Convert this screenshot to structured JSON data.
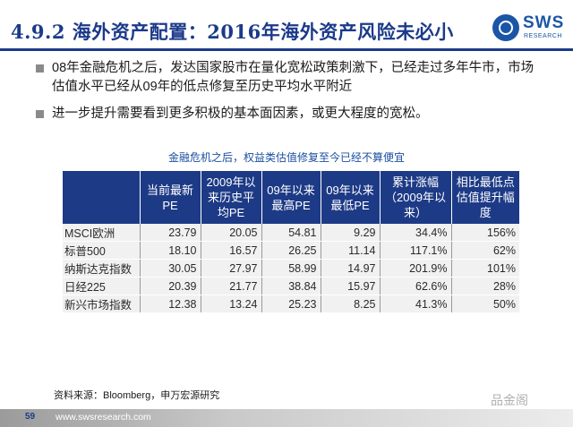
{
  "header": {
    "title": "4.9.2 海外资产配置：2016年海外资产风险未必小",
    "logo_text": "SWS",
    "logo_sub": "RESEARCH"
  },
  "bullets": [
    "08年金融危机之后，发达国家股市在量化宽松政策刺激下，已经走过多年牛市，市场估值水平已经从09年的低点修复至历史平均水平附近",
    "进一步提升需要看到更多积极的基本面因素，或更大程度的宽松。"
  ],
  "table": {
    "caption": "金融危机之后，权益类估值修复至今已经不算便宜",
    "headers": [
      "",
      "当前最新PE",
      "2009年以来历史平均PE",
      "09年以来最高PE",
      "09年以来最低PE",
      "累计涨幅（2009年以来）",
      "相比最低点估值提升幅度"
    ],
    "rows": [
      [
        "MSCI欧洲",
        "23.79",
        "20.05",
        "54.81",
        "9.29",
        "34.4%",
        "156%"
      ],
      [
        "标普500",
        "18.10",
        "16.57",
        "26.25",
        "11.14",
        "117.1%",
        "62%"
      ],
      [
        "纳斯达克指数",
        "30.05",
        "27.97",
        "58.99",
        "14.97",
        "201.9%",
        "101%"
      ],
      [
        "日经225",
        "20.39",
        "21.77",
        "38.84",
        "15.97",
        "62.6%",
        "28%"
      ],
      [
        "新兴市场指数",
        "12.38",
        "13.24",
        "25.23",
        "8.25",
        "41.3%",
        "50%"
      ]
    ]
  },
  "source": "资料来源：Bloomberg，申万宏源研究",
  "watermark": "品金阁",
  "footer": {
    "page_number": "59",
    "url": "www.swsresearch.com"
  },
  "colors": {
    "brand": "#1b3a8a",
    "table_header_bg": "#1d3a86",
    "table_row_bg": "#f1f1f1"
  }
}
